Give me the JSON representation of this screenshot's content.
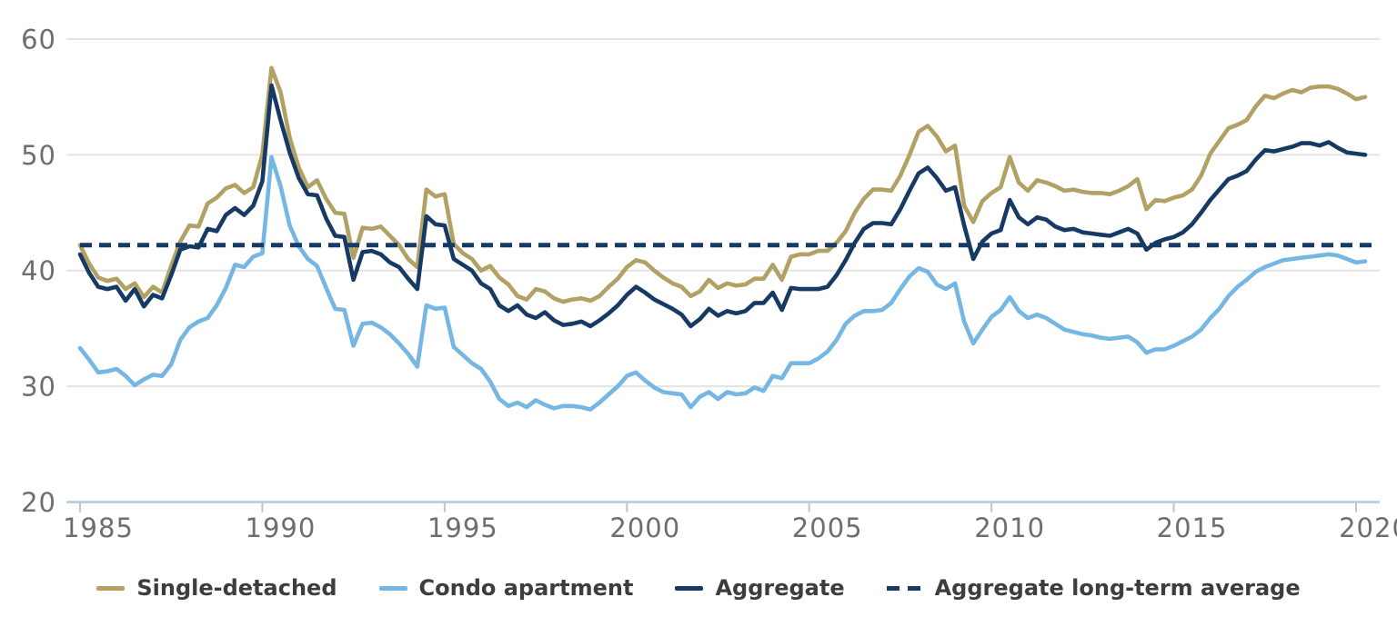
{
  "chart_data": {
    "type": "line",
    "title": "",
    "xlabel": "",
    "ylabel": "",
    "x_start": 1985.0,
    "x_step": 0.25,
    "x_end": 2020.25,
    "x_ticks": [
      1985,
      1990,
      1995,
      2000,
      2005,
      2010,
      2015,
      2020
    ],
    "ylim": [
      20,
      60
    ],
    "y_ticks": [
      20,
      30,
      40,
      50,
      60
    ],
    "grid": "horizontal",
    "legend_position": "bottom",
    "series": [
      {
        "name": "Condo apartment",
        "color": "#75b6e3",
        "style": "solid",
        "values": [
          33.3,
          32.3,
          31.2,
          31.3,
          31.5,
          30.9,
          30.1,
          30.6,
          31.0,
          30.9,
          31.9,
          34.0,
          35.1,
          35.6,
          35.9,
          37.0,
          38.5,
          40.5,
          40.3,
          41.2,
          41.5,
          49.8,
          47.3,
          43.9,
          42.1,
          41.0,
          40.4,
          38.5,
          36.7,
          36.6,
          33.5,
          35.4,
          35.5,
          35.1,
          34.5,
          33.7,
          32.8,
          31.7,
          37.0,
          36.7,
          36.8,
          33.4,
          32.7,
          32.0,
          31.5,
          30.4,
          28.9,
          28.3,
          28.6,
          28.2,
          28.8,
          28.4,
          28.1,
          28.3,
          28.3,
          28.2,
          28.0,
          28.6,
          29.3,
          30.0,
          30.9,
          31.2,
          30.5,
          29.9,
          29.5,
          29.4,
          29.3,
          28.2,
          29.1,
          29.5,
          28.9,
          29.5,
          29.3,
          29.4,
          29.9,
          29.6,
          30.9,
          30.7,
          32.0,
          32.0,
          32.0,
          32.4,
          33.0,
          34.0,
          35.4,
          36.1,
          36.5,
          36.5,
          36.6,
          37.2,
          38.4,
          39.5,
          40.2,
          39.9,
          38.8,
          38.4,
          38.9,
          35.6,
          33.7,
          34.9,
          36.0,
          36.6,
          37.7,
          36.5,
          35.9,
          36.2,
          35.9,
          35.4,
          34.9,
          34.7,
          34.5,
          34.4,
          34.2,
          34.1,
          34.2,
          34.3,
          33.8,
          32.9,
          33.2,
          33.2,
          33.5,
          33.9,
          34.3,
          34.9,
          35.9,
          36.7,
          37.8,
          38.6,
          39.2,
          39.9,
          40.3,
          40.6,
          40.9,
          41.0,
          41.1,
          41.2,
          41.3,
          41.4,
          41.3,
          41.0,
          40.7,
          40.8
        ]
      },
      {
        "name": "Single-detached",
        "color": "#b1a164",
        "style": "solid",
        "values": [
          42.2,
          40.6,
          39.4,
          39.1,
          39.3,
          38.4,
          38.9,
          37.7,
          38.6,
          38.1,
          40.4,
          42.5,
          43.9,
          43.8,
          45.8,
          46.3,
          47.1,
          47.4,
          46.7,
          47.2,
          50.0,
          57.5,
          55.4,
          51.5,
          48.9,
          47.2,
          47.8,
          46.2,
          45.0,
          44.9,
          41.1,
          43.7,
          43.6,
          43.8,
          43.0,
          42.2,
          41.0,
          40.3,
          47.0,
          46.4,
          46.6,
          42.3,
          41.5,
          41.0,
          40.0,
          40.4,
          39.4,
          38.8,
          37.8,
          37.5,
          38.4,
          38.2,
          37.6,
          37.3,
          37.5,
          37.6,
          37.4,
          37.8,
          38.6,
          39.3,
          40.3,
          40.9,
          40.7,
          40.0,
          39.4,
          38.9,
          38.6,
          37.8,
          38.2,
          39.2,
          38.5,
          38.9,
          38.7,
          38.8,
          39.3,
          39.3,
          40.5,
          39.2,
          41.2,
          41.4,
          41.4,
          41.7,
          41.7,
          42.4,
          43.4,
          45.0,
          46.2,
          47.0,
          47.0,
          46.9,
          48.2,
          50.0,
          52.0,
          52.5,
          51.6,
          50.3,
          50.8,
          45.6,
          44.2,
          46.0,
          46.7,
          47.2,
          49.8,
          47.6,
          46.9,
          47.8,
          47.6,
          47.3,
          46.9,
          47.0,
          46.8,
          46.7,
          46.7,
          46.6,
          46.9,
          47.3,
          47.9,
          45.3,
          46.1,
          46.0,
          46.3,
          46.5,
          47.0,
          48.2,
          50.1,
          51.2,
          52.3,
          52.6,
          53.0,
          54.2,
          55.1,
          54.9,
          55.3,
          55.6,
          55.4,
          55.8,
          55.9,
          55.9,
          55.7,
          55.3,
          54.8,
          55.0
        ]
      },
      {
        "name": "Aggregate",
        "color": "#163a64",
        "style": "solid",
        "values": [
          41.4,
          39.8,
          38.6,
          38.4,
          38.6,
          37.4,
          38.4,
          36.9,
          37.9,
          37.6,
          39.6,
          41.8,
          42.1,
          42.0,
          43.6,
          43.4,
          44.8,
          45.4,
          44.8,
          45.6,
          47.7,
          56.0,
          53.0,
          50.2,
          48.0,
          46.6,
          46.5,
          44.5,
          43.0,
          42.9,
          39.2,
          41.6,
          41.7,
          41.4,
          40.7,
          40.3,
          39.3,
          38.4,
          44.7,
          44.0,
          43.9,
          41.0,
          40.5,
          40.0,
          38.9,
          38.4,
          37.0,
          36.5,
          37.0,
          36.2,
          35.9,
          36.4,
          35.7,
          35.3,
          35.4,
          35.6,
          35.2,
          35.7,
          36.3,
          37.0,
          37.9,
          38.6,
          38.1,
          37.5,
          37.1,
          36.7,
          36.2,
          35.2,
          35.8,
          36.7,
          36.1,
          36.5,
          36.3,
          36.5,
          37.2,
          37.2,
          38.1,
          36.6,
          38.5,
          38.4,
          38.4,
          38.4,
          38.6,
          39.6,
          40.9,
          42.4,
          43.6,
          44.1,
          44.1,
          44.0,
          45.3,
          46.9,
          48.4,
          48.9,
          48.0,
          46.9,
          47.2,
          43.9,
          41.0,
          42.5,
          43.2,
          43.5,
          46.1,
          44.6,
          44.0,
          44.6,
          44.4,
          43.8,
          43.5,
          43.6,
          43.3,
          43.2,
          43.1,
          43.0,
          43.3,
          43.6,
          43.2,
          41.8,
          42.4,
          42.7,
          42.9,
          43.3,
          44.0,
          45.0,
          46.1,
          47.0,
          47.9,
          48.2,
          48.6,
          49.6,
          50.4,
          50.3,
          50.5,
          50.7,
          51.0,
          51.0,
          50.8,
          51.1,
          50.6,
          50.2,
          50.1,
          50.0
        ]
      },
      {
        "name": "Aggregate long-term average",
        "color": "#163a64",
        "style": "dashed",
        "constant_value": 42.2
      }
    ]
  },
  "legend": {
    "items": [
      "Single-detached",
      "Condo apartment",
      "Aggregate",
      "Aggregate long-term average"
    ]
  },
  "colors": {
    "single_detached": "#b1a164",
    "condo_apartment": "#75b6e3",
    "aggregate": "#163a64",
    "average_line": "#163a64",
    "gridline": "#e3e3e3",
    "axis_line": "#b3c7de",
    "axis_label": "#6e6e6e",
    "legend_text": "#3d3d3d",
    "background": "#ffffff"
  }
}
